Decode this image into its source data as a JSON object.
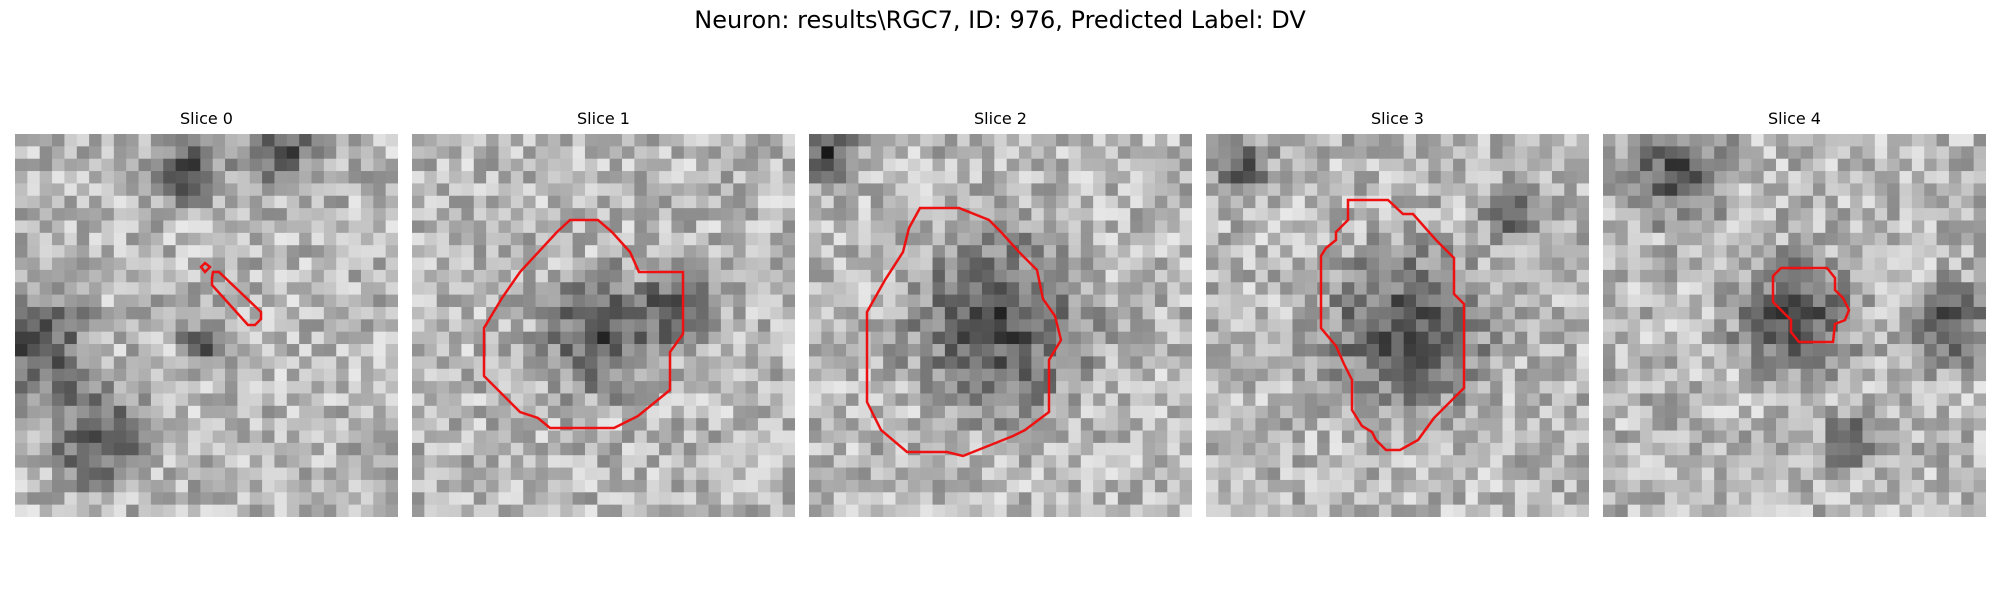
{
  "figure": {
    "title": "Neuron: results\\RGC7, ID: 976, Predicted Label: DV"
  },
  "colors": {
    "contour": "#ee1111",
    "background": "#ffffff"
  },
  "panels": [
    {
      "title": "Slice 0",
      "seed": 11,
      "dark_spots": [
        [
          0.05,
          0.55,
          0.22
        ],
        [
          0.22,
          0.8,
          0.18
        ],
        [
          0.45,
          0.1,
          0.14
        ],
        [
          0.7,
          0.05,
          0.12
        ],
        [
          0.5,
          0.55,
          0.1
        ]
      ]
    },
    {
      "title": "Slice 1",
      "seed": 23,
      "dark_spots": [
        [
          0.5,
          0.52,
          0.22
        ],
        [
          0.7,
          0.45,
          0.12
        ]
      ]
    },
    {
      "title": "Slice 2",
      "seed": 37,
      "dark_spots": [
        [
          0.5,
          0.5,
          0.32
        ],
        [
          0.05,
          0.05,
          0.1
        ]
      ]
    },
    {
      "title": "Slice 3",
      "seed": 53,
      "dark_spots": [
        [
          0.52,
          0.52,
          0.3
        ],
        [
          0.1,
          0.1,
          0.1
        ],
        [
          0.8,
          0.2,
          0.1
        ]
      ]
    },
    {
      "title": "Slice 4",
      "seed": 71,
      "dark_spots": [
        [
          0.5,
          0.48,
          0.22
        ],
        [
          0.2,
          0.1,
          0.18
        ],
        [
          0.9,
          0.5,
          0.15
        ],
        [
          0.65,
          0.8,
          0.1
        ]
      ]
    }
  ]
}
